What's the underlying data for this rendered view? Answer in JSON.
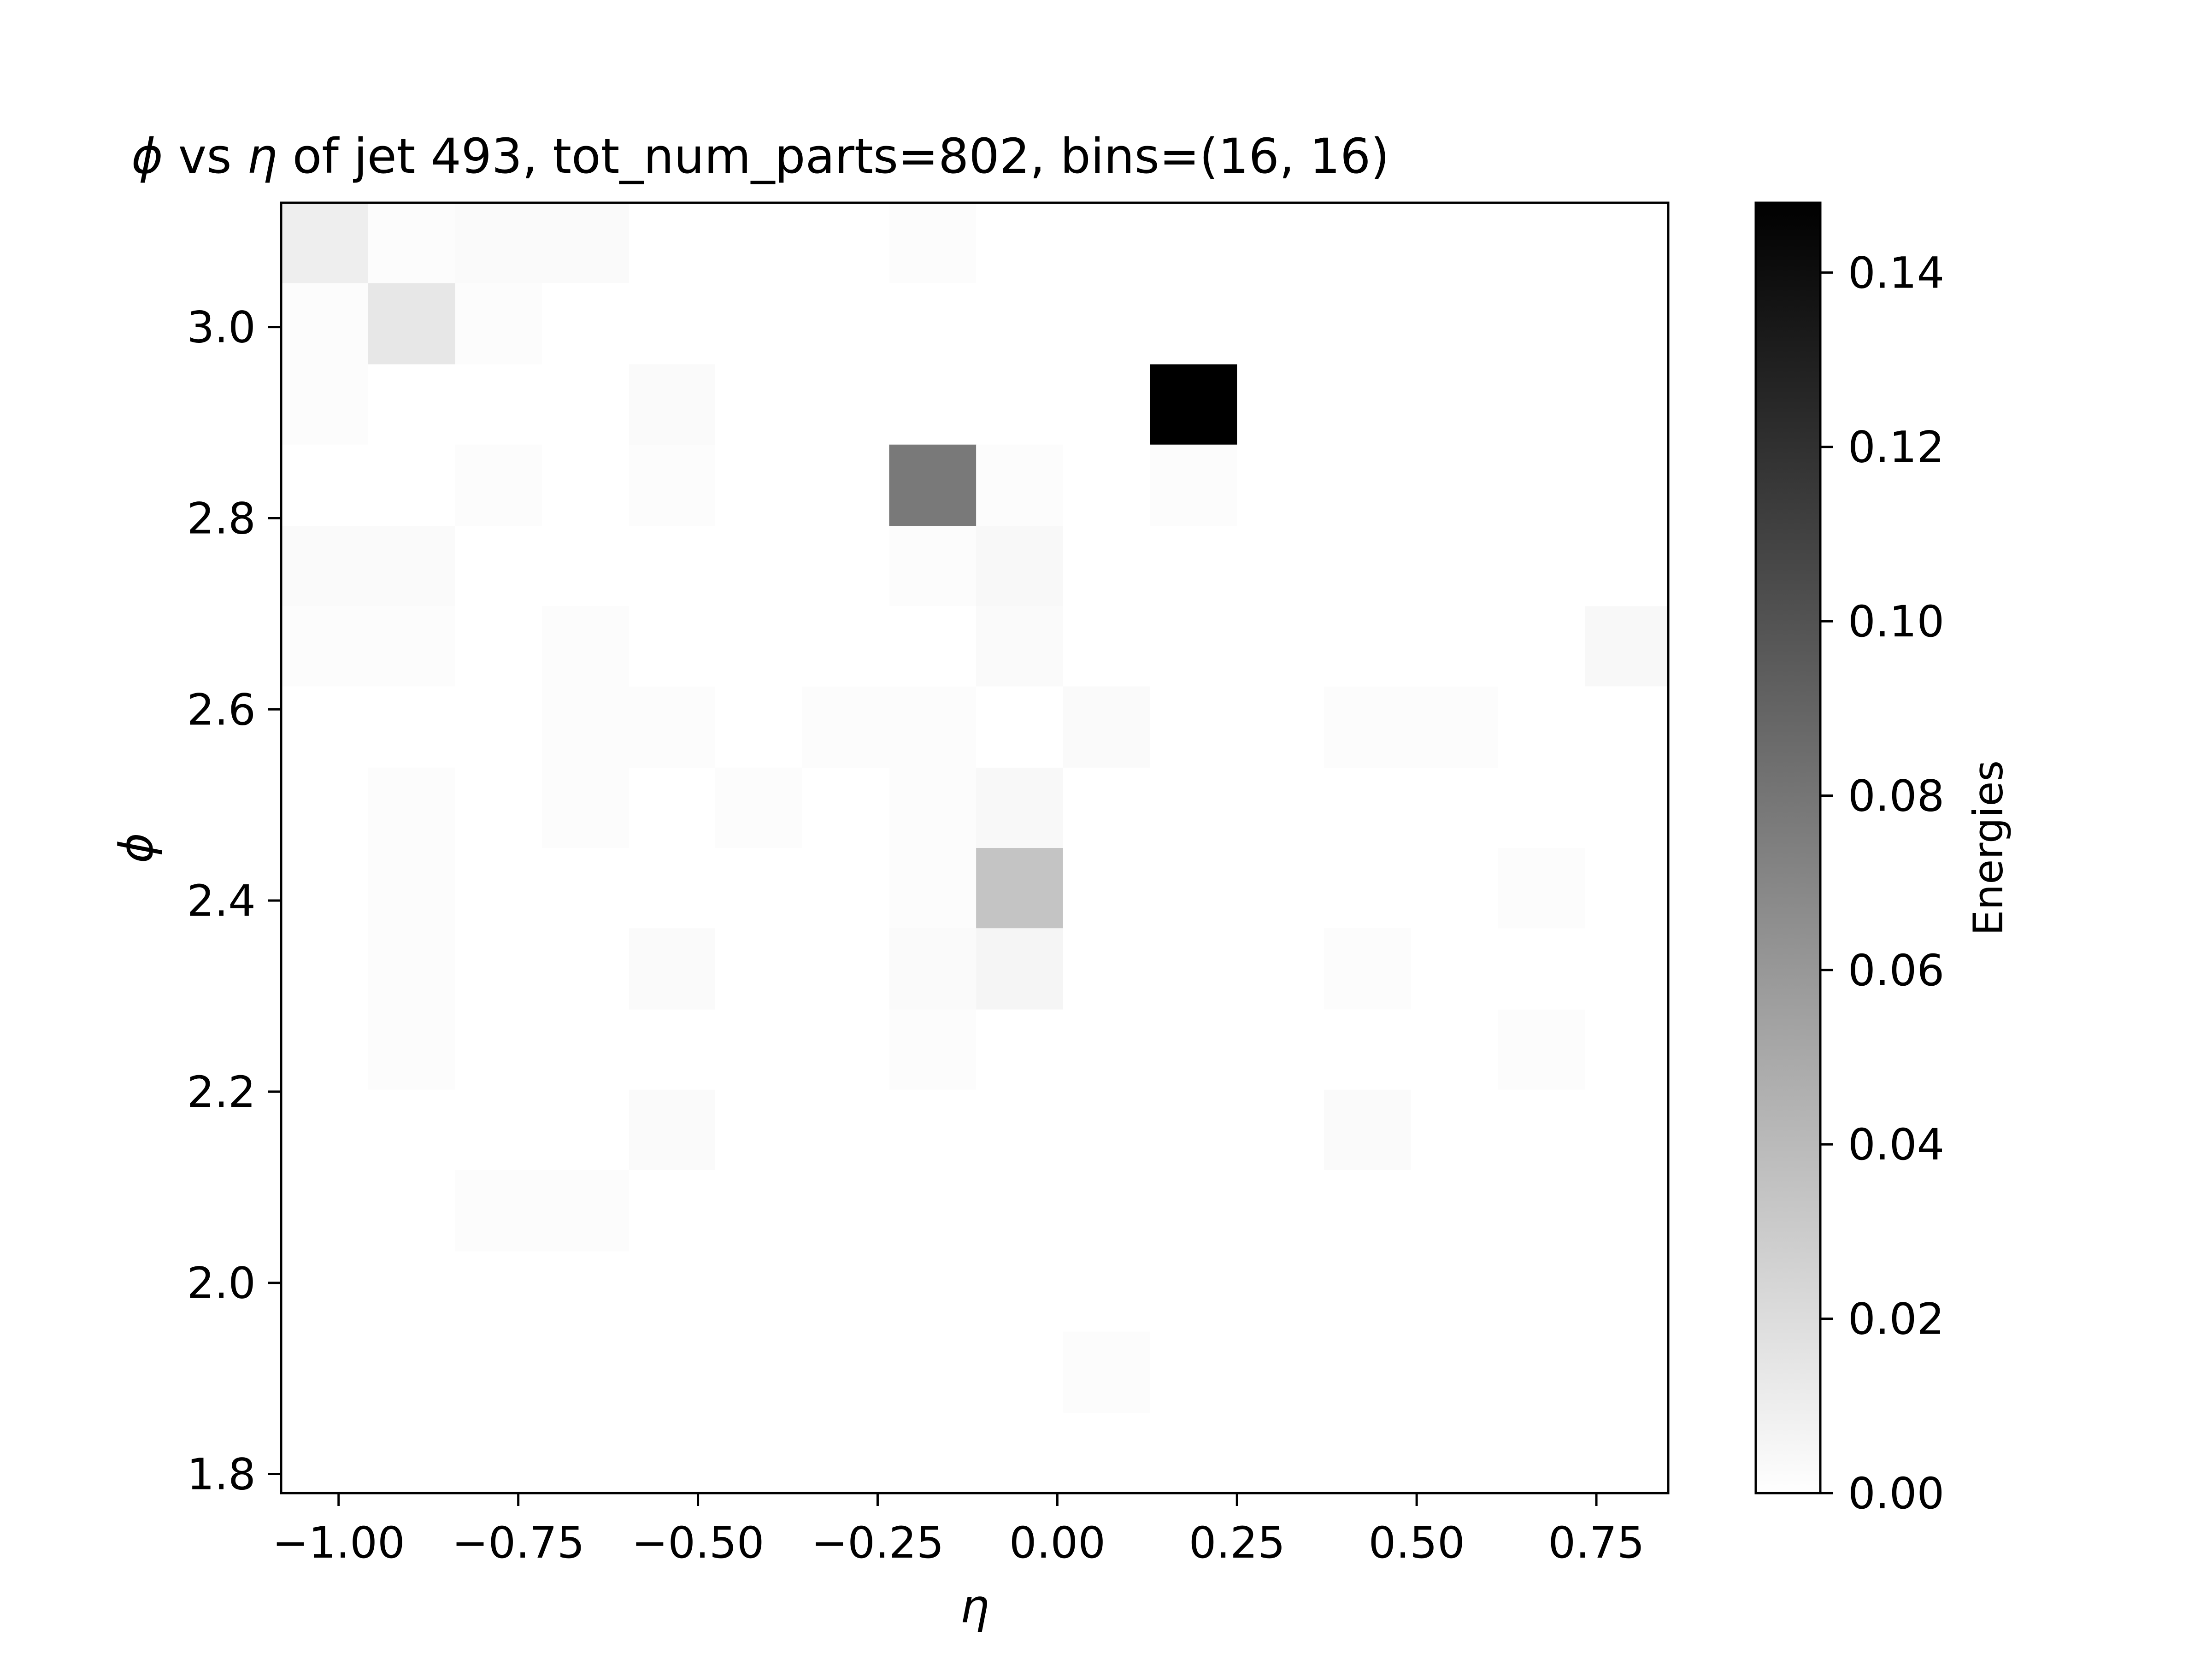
{
  "chart_data": {
    "type": "heatmap",
    "title": {
      "phi": "ϕ",
      "vs": " vs ",
      "eta": "η",
      "rest": " of jet 493, tot_num_parts=802, bins=(16, 16)"
    },
    "xlabel": "η",
    "ylabel": "ϕ",
    "colorbar_label": "Energies",
    "colormap": "Greys",
    "xlim": [
      -1.08,
      0.85
    ],
    "ylim": [
      1.78,
      3.13
    ],
    "zlim": [
      0.0,
      0.148
    ],
    "x_edges": [
      -1.08,
      -0.959,
      -0.838,
      -0.717,
      -0.596,
      -0.476,
      -0.355,
      -0.234,
      -0.113,
      0.008,
      0.129,
      0.25,
      0.371,
      0.492,
      0.613,
      0.734,
      0.85
    ],
    "y_edges": [
      1.78,
      1.864,
      1.949,
      2.033,
      2.118,
      2.202,
      2.286,
      2.371,
      2.455,
      2.539,
      2.624,
      2.708,
      2.792,
      2.877,
      2.961,
      3.046,
      3.13
    ],
    "x_ticks": [
      {
        "value": -1.0,
        "label": "−1.00"
      },
      {
        "value": -0.75,
        "label": "−0.75"
      },
      {
        "value": -0.5,
        "label": "−0.50"
      },
      {
        "value": -0.25,
        "label": "−0.25"
      },
      {
        "value": 0.0,
        "label": "0.00"
      },
      {
        "value": 0.25,
        "label": "0.25"
      },
      {
        "value": 0.5,
        "label": "0.50"
      },
      {
        "value": 0.75,
        "label": "0.75"
      }
    ],
    "y_ticks": [
      {
        "value": 1.8,
        "label": "1.8"
      },
      {
        "value": 2.0,
        "label": "2.0"
      },
      {
        "value": 2.2,
        "label": "2.2"
      },
      {
        "value": 2.4,
        "label": "2.4"
      },
      {
        "value": 2.6,
        "label": "2.6"
      },
      {
        "value": 2.8,
        "label": "2.8"
      },
      {
        "value": 3.0,
        "label": "3.0"
      }
    ],
    "colorbar_ticks": [
      {
        "value": 0.0,
        "label": "0.00"
      },
      {
        "value": 0.02,
        "label": "0.02"
      },
      {
        "value": 0.04,
        "label": "0.04"
      },
      {
        "value": 0.06,
        "label": "0.06"
      },
      {
        "value": 0.08,
        "label": "0.08"
      },
      {
        "value": 0.1,
        "label": "0.10"
      },
      {
        "value": 0.12,
        "label": "0.12"
      },
      {
        "value": 0.14,
        "label": "0.14"
      }
    ],
    "cells_note_row0_is_top": true,
    "values": [
      [
        0.01,
        0.002,
        0.003,
        0.003,
        0.0,
        0.0,
        0.0,
        0.002,
        0.0,
        0.0,
        0.0,
        0.0,
        0.0,
        0.0,
        0.0,
        0.0
      ],
      [
        0.002,
        0.014,
        0.002,
        0.0,
        0.0,
        0.0,
        0.0,
        0.0,
        0.0,
        0.0,
        0.0,
        0.0,
        0.0,
        0.0,
        0.0,
        0.0
      ],
      [
        0.002,
        0.0,
        0.0,
        0.0,
        0.003,
        0.0,
        0.0,
        0.0,
        0.0,
        0.0,
        0.148,
        0.0,
        0.0,
        0.0,
        0.0,
        0.0
      ],
      [
        0.0,
        0.0,
        0.002,
        0.0,
        0.002,
        0.0,
        0.0,
        0.078,
        0.002,
        0.0,
        0.002,
        0.0,
        0.0,
        0.0,
        0.0,
        0.0
      ],
      [
        0.003,
        0.003,
        0.0,
        0.0,
        0.0,
        0.0,
        0.0,
        0.002,
        0.004,
        0.0,
        0.0,
        0.0,
        0.0,
        0.0,
        0.0,
        0.0
      ],
      [
        0.002,
        0.002,
        0.0,
        0.002,
        0.0,
        0.0,
        0.0,
        0.0,
        0.003,
        0.0,
        0.0,
        0.0,
        0.0,
        0.0,
        0.0,
        0.004
      ],
      [
        0.0,
        0.0,
        0.0,
        0.002,
        0.002,
        0.0,
        0.002,
        0.002,
        0.0,
        0.003,
        0.0,
        0.0,
        0.002,
        0.002,
        0.0,
        0.0
      ],
      [
        0.0,
        0.002,
        0.0,
        0.002,
        0.0,
        0.002,
        0.0,
        0.002,
        0.004,
        0.0,
        0.0,
        0.0,
        0.0,
        0.0,
        0.0,
        0.0
      ],
      [
        0.0,
        0.002,
        0.0,
        0.0,
        0.0,
        0.0,
        0.0,
        0.002,
        0.034,
        0.0,
        0.0,
        0.0,
        0.0,
        0.0,
        0.002,
        0.0
      ],
      [
        0.0,
        0.002,
        0.0,
        0.0,
        0.003,
        0.0,
        0.0,
        0.003,
        0.006,
        0.0,
        0.0,
        0.0,
        0.002,
        0.0,
        0.0,
        0.0
      ],
      [
        0.0,
        0.002,
        0.0,
        0.0,
        0.0,
        0.0,
        0.0,
        0.002,
        0.0,
        0.0,
        0.0,
        0.0,
        0.0,
        0.0,
        0.002,
        0.0
      ],
      [
        0.0,
        0.0,
        0.0,
        0.0,
        0.003,
        0.0,
        0.0,
        0.0,
        0.0,
        0.0,
        0.0,
        0.0,
        0.003,
        0.0,
        0.0,
        0.0
      ],
      [
        0.0,
        0.0,
        0.002,
        0.002,
        0.0,
        0.0,
        0.0,
        0.0,
        0.0,
        0.0,
        0.0,
        0.0,
        0.0,
        0.0,
        0.0,
        0.0
      ],
      [
        0.0,
        0.0,
        0.0,
        0.0,
        0.0,
        0.0,
        0.0,
        0.0,
        0.0,
        0.0,
        0.0,
        0.0,
        0.0,
        0.0,
        0.0,
        0.0
      ],
      [
        0.0,
        0.0,
        0.0,
        0.0,
        0.0,
        0.0,
        0.0,
        0.0,
        0.0,
        0.002,
        0.0,
        0.0,
        0.0,
        0.0,
        0.0,
        0.0
      ],
      [
        0.0,
        0.0,
        0.0,
        0.0,
        0.0,
        0.0,
        0.0,
        0.0,
        0.0,
        0.0,
        0.0,
        0.0,
        0.0,
        0.0,
        0.0,
        0.0
      ]
    ]
  }
}
